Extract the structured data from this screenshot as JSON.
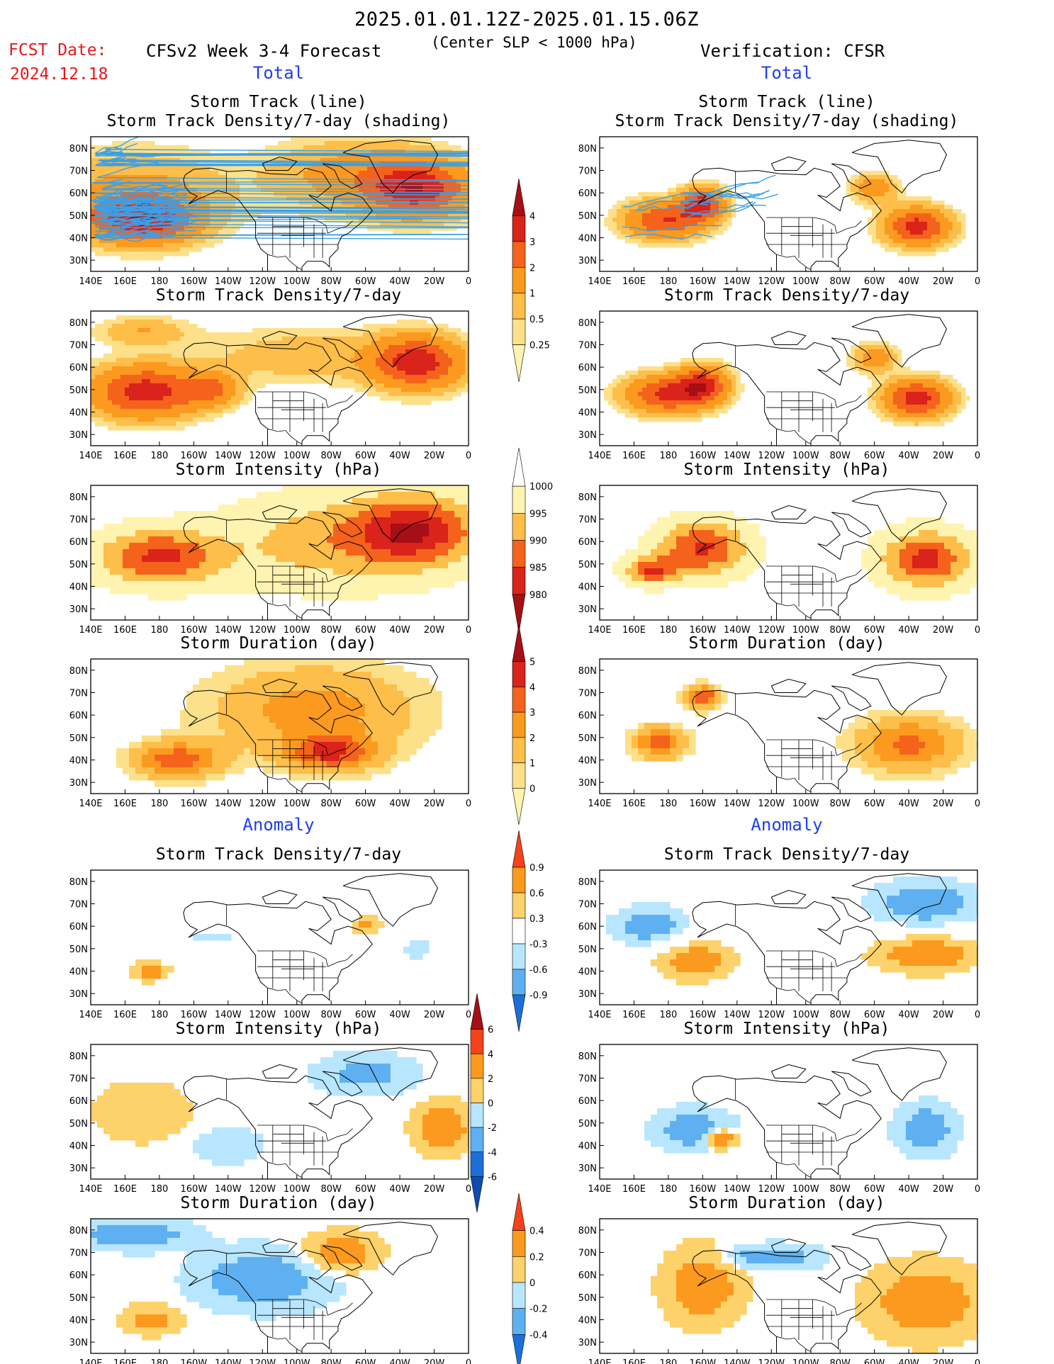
{
  "header": {
    "date_range": "2025.01.01.12Z-2025.01.15.06Z",
    "fcst_label": "FCST Date:",
    "fcst_date": "2024.12.18",
    "model_title": "CFSv2 Week 3-4 Forecast",
    "subtitle": "(Center SLP < 1000 hPa)",
    "verification": "Verification: CFSR"
  },
  "sections": {
    "total_left": "Total",
    "total_right": "Total",
    "anomaly_left": "Anomaly",
    "anomaly_right": "Anomaly"
  },
  "panel_titles": {
    "track_line": "Storm Track (line)",
    "track_shading": "Storm Track Density/7-day (shading)",
    "density": "Storm Track Density/7-day",
    "intensity": "Storm Intensity (hPa)",
    "duration": "Storm Duration (day)"
  },
  "axes": {
    "lon_ticks": [
      "140E",
      "160E",
      "180",
      "160W",
      "140W",
      "120W",
      "100W",
      "80W",
      "60W",
      "40W",
      "20W",
      "0"
    ],
    "lat_ticks": [
      "80N",
      "70N",
      "60N",
      "50N",
      "40N",
      "30N"
    ]
  },
  "colorbars": {
    "density_total": {
      "labels": [
        "0.25",
        "0.5",
        "1",
        "2",
        "3",
        "4"
      ],
      "colors": [
        "#fff3b0",
        "#fde08a",
        "#fdbe4a",
        "#fb9a1e",
        "#f4621c",
        "#d9231b",
        "#a50f15"
      ]
    },
    "intensity_total": {
      "labels": [
        "1000",
        "995",
        "990",
        "985",
        "980"
      ],
      "colors": [
        "#ffffff",
        "#fff3b0",
        "#fdbe4a",
        "#f4621c",
        "#d9231b",
        "#a50f15"
      ]
    },
    "duration_total": {
      "labels": [
        "0",
        "1",
        "2",
        "3",
        "4",
        "5"
      ],
      "colors": [
        "#fff3b0",
        "#fde08a",
        "#fdbe4a",
        "#fb9a1e",
        "#f4621c",
        "#d9231b",
        "#a50f15"
      ]
    },
    "density_anom": {
      "labels": [
        "0.9",
        "0.6",
        "0.3",
        "-0.3",
        "-0.6",
        "-0.9"
      ],
      "colors": [
        "#f4431c",
        "#fb9a1e",
        "#fdd26a",
        "#ffffff",
        "#b8e6ff",
        "#5fb0f0",
        "#1c6fd8"
      ]
    },
    "intensity_anom": {
      "labels": [
        "6",
        "4",
        "2",
        "0",
        "-2",
        "-4",
        "-6"
      ],
      "colors": [
        "#a50f15",
        "#f4431c",
        "#fb9a1e",
        "#fdd26a",
        "#b8e6ff",
        "#5fb0f0",
        "#1c6fd8",
        "#0d4db0"
      ]
    },
    "duration_anom": {
      "labels": [
        "0.4",
        "0.2",
        "0",
        "-0.2",
        "-0.4"
      ],
      "colors": [
        "#f4431c",
        "#fb9a1e",
        "#fdd26a",
        "#b8e6ff",
        "#5fb0f0",
        "#1c6fd8"
      ]
    }
  },
  "chart_data": {
    "type": "heatmap",
    "title": "2025.01.01.12Z-2025.01.15.06Z",
    "xlim": [
      "140E",
      "0"
    ],
    "ylim": [
      "25N",
      "85N"
    ],
    "panels": [
      {
        "row": 1,
        "column": "CFSv2 Week 3-4 Forecast",
        "title": "Storm Track (line) / Storm Track Density/7-day (shading)",
        "blobs": [
          [
            170,
            48,
            30,
            10,
            3.5
          ],
          [
            165,
            60,
            55,
            18,
            1.2
          ],
          [
            -30,
            62,
            30,
            12,
            3.6
          ],
          [
            -70,
            68,
            45,
            15,
            1.3
          ]
        ],
        "tracks": true
      },
      {
        "row": 1,
        "column": "Verification: CFSR",
        "title": "Storm Track (line) / Storm Track Density/7-day (shading)",
        "blobs": [
          [
            178,
            48,
            22,
            8,
            3
          ],
          [
            -160,
            55,
            12,
            7,
            3.3
          ],
          [
            -35,
            45,
            18,
            8,
            3.5
          ],
          [
            -60,
            62,
            12,
            6,
            1.6
          ]
        ],
        "tracks": true
      },
      {
        "row": 2,
        "column": "CFSv2 Week 3-4 Forecast",
        "title": "Storm Track Density/7-day",
        "blobs": [
          [
            172,
            49,
            30,
            11,
            3.6
          ],
          [
            -150,
            50,
            15,
            7,
            2
          ],
          [
            -30,
            62,
            25,
            11,
            3.6
          ],
          [
            -95,
            65,
            60,
            12,
            0.8
          ],
          [
            170,
            76,
            25,
            6,
            1
          ]
        ]
      },
      {
        "row": 2,
        "column": "Verification: CFSR",
        "title": "Storm Track Density/7-day",
        "blobs": [
          [
            178,
            48,
            22,
            8,
            3.2
          ],
          [
            -160,
            52,
            14,
            8,
            3.3
          ],
          [
            -35,
            46,
            18,
            8,
            3.6
          ],
          [
            -60,
            64,
            12,
            6,
            1.5
          ]
        ]
      },
      {
        "row": 3,
        "column": "CFSv2 Week 3-4 Forecast",
        "title": "Storm Intensity (hPa)",
        "blobs": [
          [
            -180,
            53,
            35,
            12,
            984
          ],
          [
            -30,
            65,
            35,
            15,
            983
          ],
          [
            -80,
            60,
            60,
            20,
            992
          ]
        ]
      },
      {
        "row": 3,
        "column": "Verification: CFSR",
        "title": "Storm Intensity (hPa)",
        "blobs": [
          [
            -160,
            57,
            25,
            12,
            984
          ],
          [
            -30,
            52,
            25,
            12,
            983
          ],
          [
            170,
            47,
            15,
            6,
            986
          ]
        ]
      },
      {
        "row": 4,
        "column": "CFSv2 Week 3-4 Forecast",
        "title": "Storm Duration (day)",
        "blobs": [
          [
            -170,
            40,
            25,
            8,
            3.6
          ],
          [
            -80,
            43,
            25,
            8,
            3.6
          ],
          [
            -90,
            62,
            60,
            20,
            2.5
          ]
        ]
      },
      {
        "row": 4,
        "column": "Verification: CFSR",
        "title": "Storm Duration (day)",
        "blobs": [
          [
            -160,
            68,
            10,
            5,
            4.2
          ],
          [
            175,
            48,
            15,
            7,
            3.6
          ],
          [
            -40,
            47,
            30,
            12,
            3.3
          ]
        ]
      },
      {
        "row": 5,
        "column": "CFSv2 Week 3-4 Forecast",
        "title": "Anomaly Storm Track Density/7-day",
        "blobs": [
          [
            175,
            40,
            12,
            5,
            0.8
          ],
          [
            -60,
            60,
            10,
            5,
            0.7
          ],
          [
            -30,
            50,
            8,
            5,
            -0.6
          ],
          [
            -150,
            55,
            20,
            5,
            -0.4
          ]
        ]
      },
      {
        "row": 5,
        "column": "Verification: CFSR",
        "title": "Anomaly Storm Track Density/7-day",
        "blobs": [
          [
            -30,
            70,
            35,
            12,
            -0.9
          ],
          [
            -30,
            48,
            35,
            10,
            0.9
          ],
          [
            -165,
            45,
            25,
            10,
            0.9
          ],
          [
            170,
            60,
            25,
            10,
            -0.9
          ]
        ]
      },
      {
        "row": 6,
        "column": "CFSv2 Week 3-4 Forecast",
        "title": "Anomaly Storm Intensity (hPa)",
        "blobs": [
          [
            -15,
            48,
            15,
            10,
            4
          ],
          [
            -60,
            72,
            25,
            8,
            -3
          ],
          [
            170,
            55,
            25,
            12,
            2
          ],
          [
            -140,
            40,
            20,
            8,
            -1.5
          ]
        ]
      },
      {
        "row": 6,
        "column": "Verification: CFSR",
        "title": "Anomaly Storm Intensity (hPa)",
        "blobs": [
          [
            -165,
            47,
            20,
            8,
            -4
          ],
          [
            -30,
            47,
            15,
            10,
            -4
          ],
          [
            -150,
            43,
            8,
            4,
            6
          ]
        ]
      },
      {
        "row": 7,
        "column": "CFSv2 Week 3-4 Forecast",
        "title": "Anomaly Storm Duration (day)",
        "blobs": [
          [
            165,
            78,
            30,
            6,
            -0.4
          ],
          [
            -120,
            58,
            35,
            12,
            -0.4
          ],
          [
            -75,
            70,
            20,
            8,
            0.4
          ],
          [
            175,
            40,
            15,
            6,
            0.3
          ]
        ]
      },
      {
        "row": 7,
        "column": "Verification: CFSR",
        "title": "Anomaly Storm Duration (day)",
        "blobs": [
          [
            -160,
            55,
            20,
            15,
            0.4
          ],
          [
            -30,
            48,
            30,
            15,
            0.4
          ],
          [
            -120,
            68,
            25,
            5,
            -0.4
          ]
        ]
      }
    ]
  }
}
